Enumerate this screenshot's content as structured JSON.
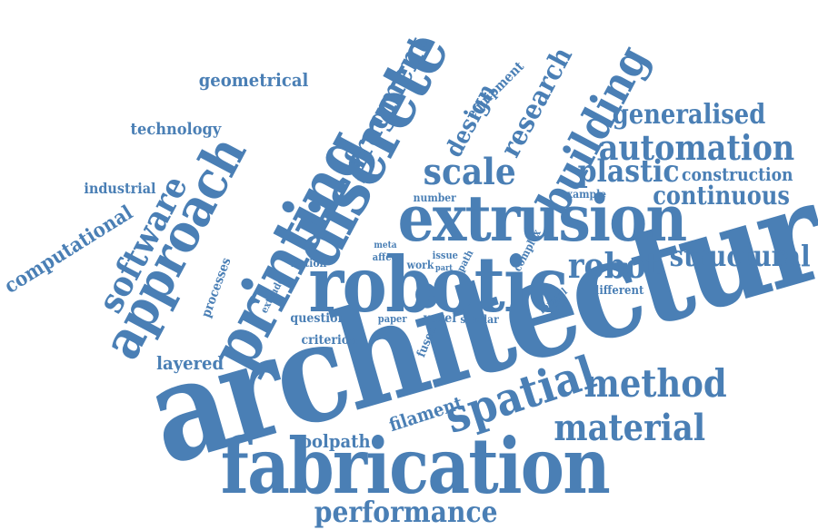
{
  "color": "#4a7fb5",
  "words": [
    "architecture",
    "fabrication",
    "extrusion",
    "robotic",
    "printing",
    "approach",
    "discrete",
    "software",
    "fragment",
    "building",
    "automation",
    "spatial",
    "material",
    "method",
    "scale",
    "structural",
    "generalised",
    "plastic",
    "construction",
    "continuous",
    "robot",
    "performance",
    "research",
    "design",
    "computational",
    "geometrical",
    "technology",
    "industrial",
    "equipment",
    "toolpath",
    "filament",
    "layered",
    "question",
    "criterion",
    "processes",
    "example",
    "number",
    "different",
    "voxel",
    "similar",
    "paper",
    "fused",
    "formal",
    "complex",
    "extrude",
    "notion",
    "affect",
    "work",
    "issue",
    "path",
    "part",
    "meta"
  ]
}
